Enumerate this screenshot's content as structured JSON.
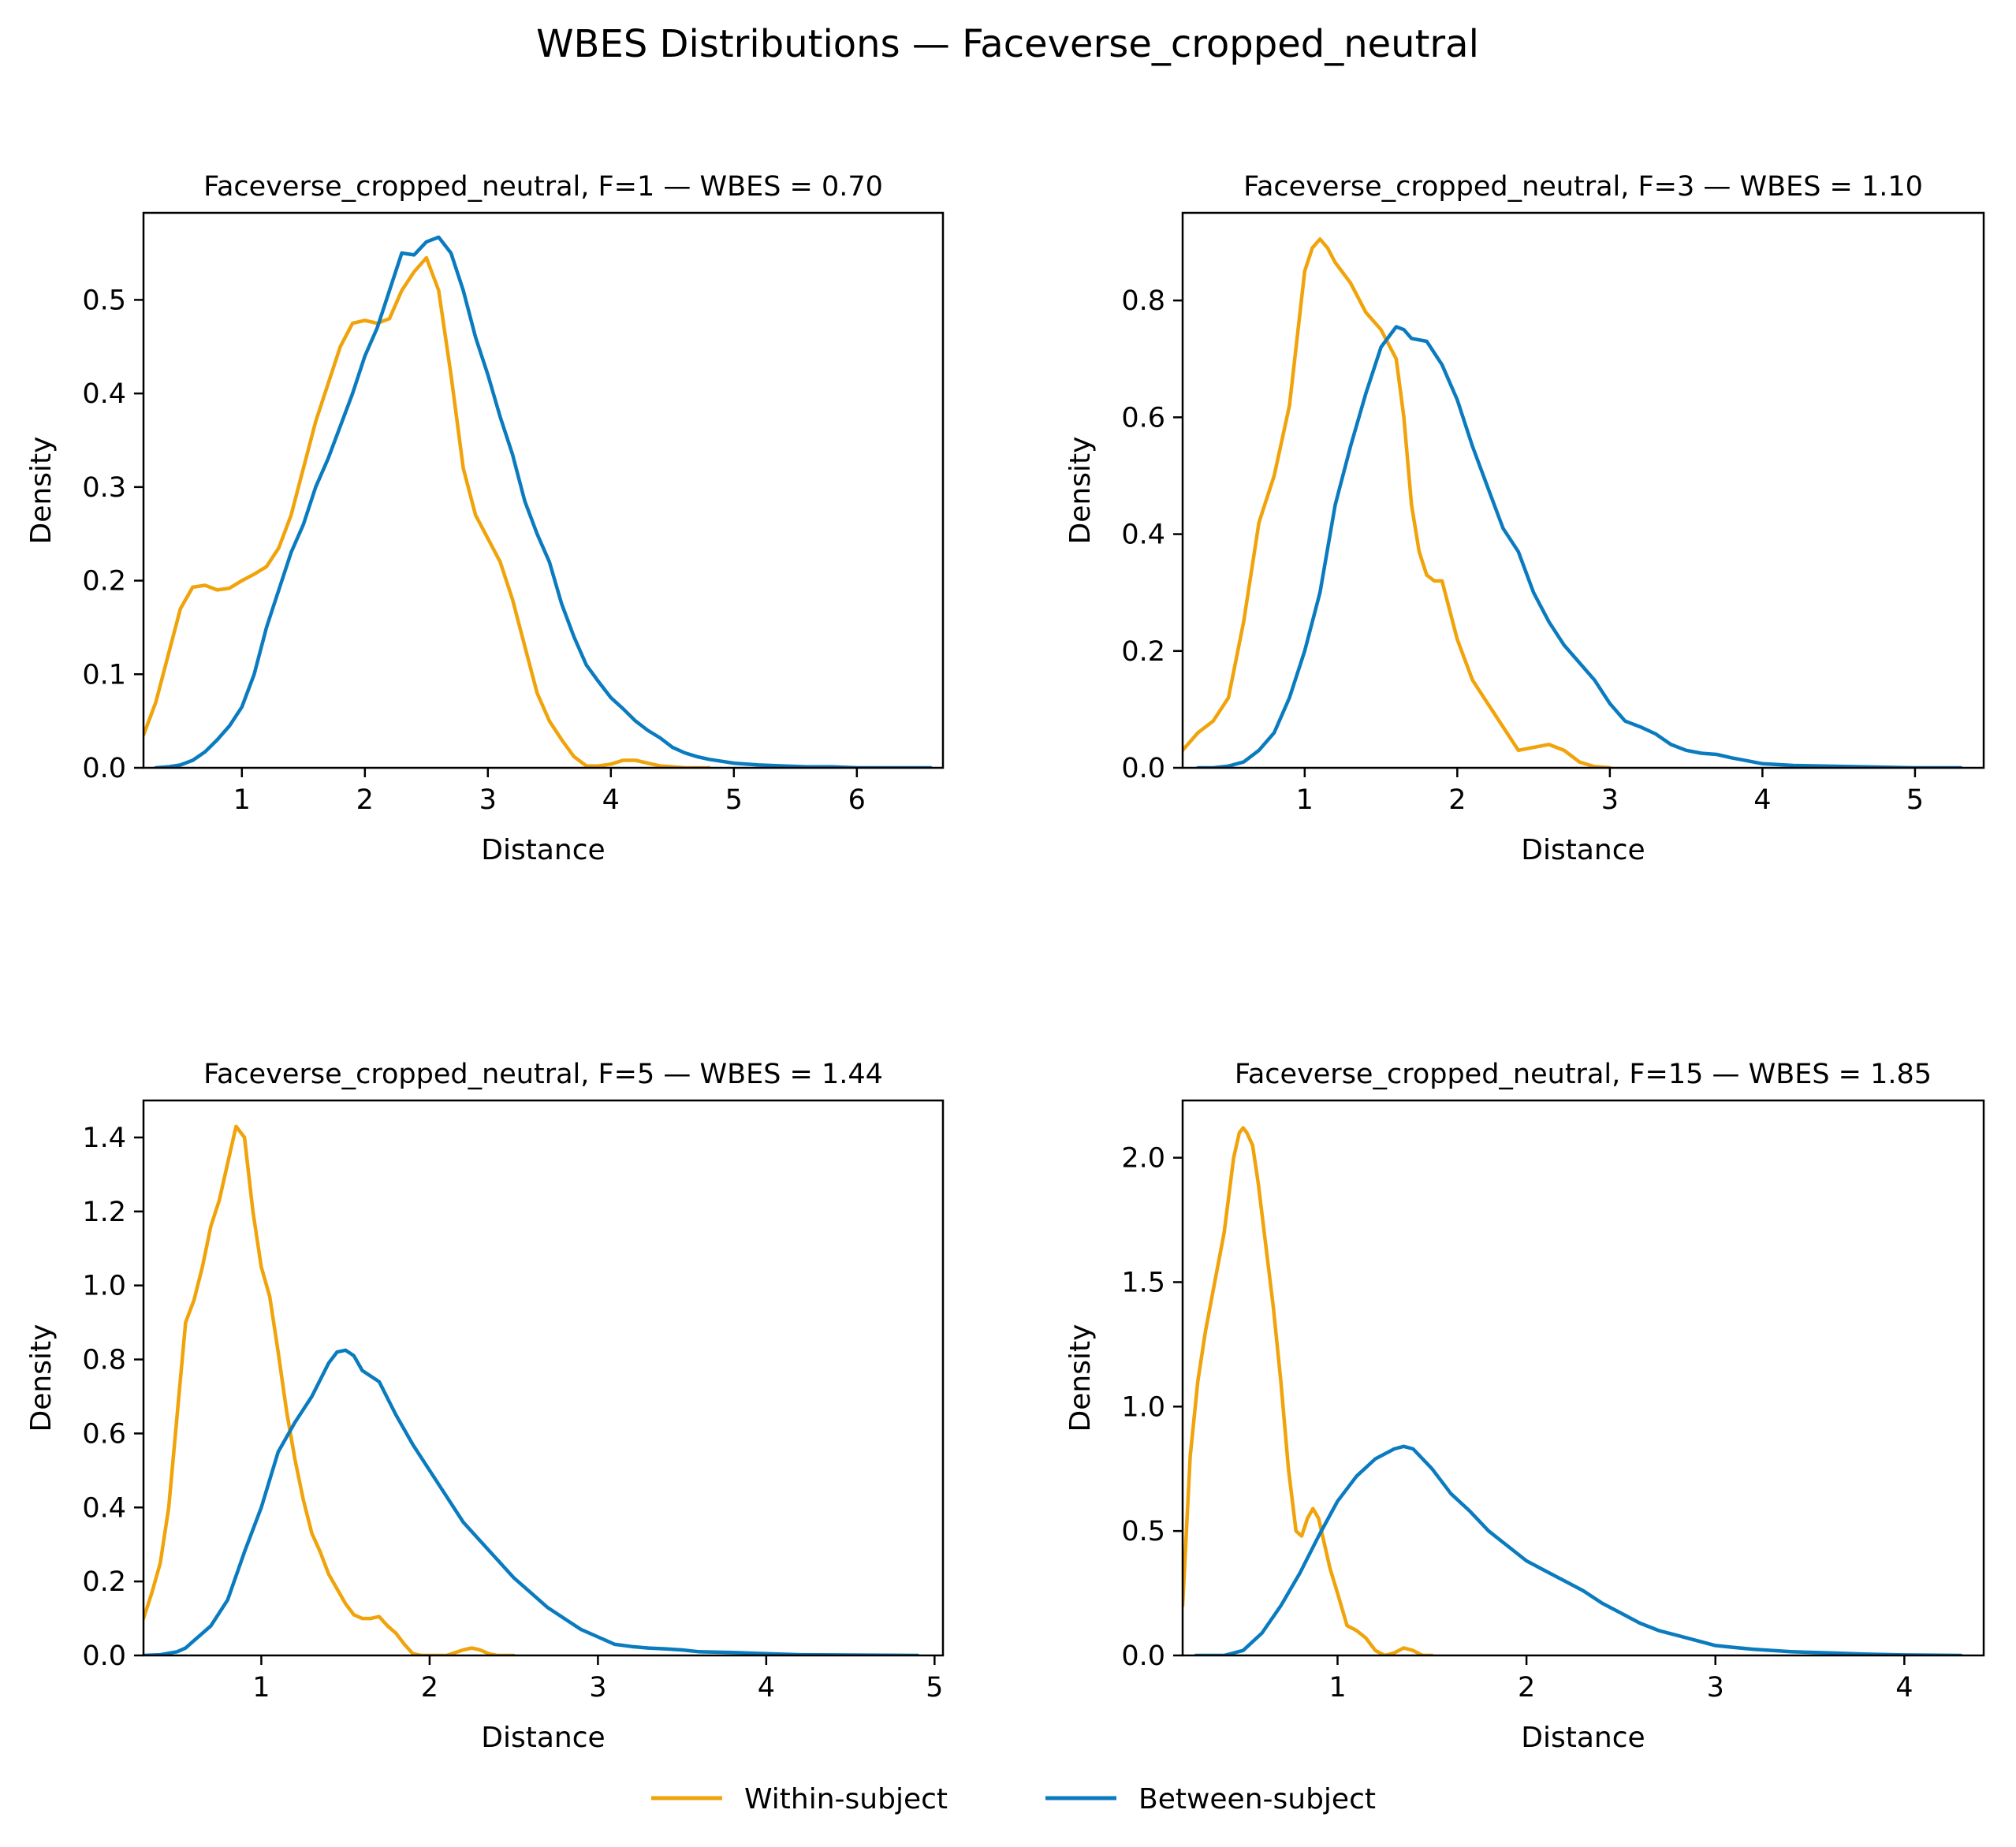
{
  "figure": {
    "suptitle": "WBES Distributions — Faceverse_cropped_neutral",
    "legend": {
      "placement": "bottom-center",
      "entries": [
        {
          "label": "Within-subject",
          "color": "#F0A30A"
        },
        {
          "label": "Between-subject",
          "color": "#0A7BBF"
        }
      ]
    }
  },
  "chart_data": [
    {
      "type": "line",
      "title": "Faceverse_cropped_neutral, F=1 — WBES = 0.70",
      "xlabel": "Distance",
      "ylabel": "Density",
      "xlim": [
        0.2,
        6.7
      ],
      "ylim": [
        0,
        0.593
      ],
      "xticks": [
        1,
        2,
        3,
        4,
        5,
        6
      ],
      "yticks": [
        0.0,
        0.1,
        0.2,
        0.3,
        0.4,
        0.5
      ],
      "ytick_labels": [
        "0.0",
        "0.1",
        "0.2",
        "0.3",
        "0.4",
        "0.5"
      ],
      "grid": false,
      "series": [
        {
          "name": "Within-subject",
          "color": "#F0A30A",
          "x": [
            0.2,
            0.3,
            0.4,
            0.5,
            0.6,
            0.7,
            0.8,
            0.9,
            1.0,
            1.1,
            1.2,
            1.3,
            1.4,
            1.5,
            1.6,
            1.7,
            1.8,
            1.9,
            2.0,
            2.1,
            2.2,
            2.3,
            2.4,
            2.5,
            2.6,
            2.7,
            2.8,
            2.9,
            3.0,
            3.1,
            3.2,
            3.3,
            3.4,
            3.5,
            3.6,
            3.7,
            3.8,
            3.9,
            4.0,
            4.1,
            4.2,
            4.3,
            4.4,
            4.5,
            4.6,
            4.7,
            4.8
          ],
          "y": [
            0.035,
            0.07,
            0.12,
            0.17,
            0.193,
            0.195,
            0.19,
            0.192,
            0.2,
            0.207,
            0.215,
            0.235,
            0.27,
            0.32,
            0.37,
            0.41,
            0.45,
            0.475,
            0.478,
            0.475,
            0.48,
            0.51,
            0.53,
            0.545,
            0.51,
            0.42,
            0.32,
            0.27,
            0.245,
            0.22,
            0.18,
            0.13,
            0.08,
            0.05,
            0.03,
            0.012,
            0.002,
            0.002,
            0.004,
            0.008,
            0.008,
            0.005,
            0.002,
            0.001,
            0.0,
            0.0,
            0.0
          ]
        },
        {
          "name": "Between-subject",
          "color": "#0A7BBF",
          "x": [
            0.3,
            0.4,
            0.5,
            0.6,
            0.7,
            0.8,
            0.9,
            1.0,
            1.1,
            1.2,
            1.3,
            1.4,
            1.5,
            1.6,
            1.7,
            1.8,
            1.9,
            2.0,
            2.1,
            2.2,
            2.3,
            2.4,
            2.5,
            2.6,
            2.7,
            2.8,
            2.9,
            3.0,
            3.1,
            3.2,
            3.3,
            3.4,
            3.5,
            3.6,
            3.7,
            3.8,
            3.9,
            4.0,
            4.1,
            4.2,
            4.3,
            4.4,
            4.5,
            4.6,
            4.7,
            4.8,
            4.9,
            5.0,
            5.2,
            5.4,
            5.6,
            5.8,
            6.0,
            6.2,
            6.4,
            6.6
          ],
          "y": [
            0.0,
            0.001,
            0.003,
            0.008,
            0.017,
            0.03,
            0.045,
            0.065,
            0.1,
            0.15,
            0.19,
            0.23,
            0.26,
            0.3,
            0.33,
            0.365,
            0.4,
            0.44,
            0.47,
            0.51,
            0.55,
            0.548,
            0.562,
            0.567,
            0.55,
            0.51,
            0.46,
            0.42,
            0.375,
            0.335,
            0.285,
            0.25,
            0.22,
            0.175,
            0.14,
            0.11,
            0.092,
            0.075,
            0.063,
            0.05,
            0.04,
            0.032,
            0.022,
            0.016,
            0.012,
            0.009,
            0.007,
            0.005,
            0.003,
            0.002,
            0.001,
            0.001,
            0.0,
            0.0,
            0.0,
            0.0
          ]
        }
      ]
    },
    {
      "type": "line",
      "title": "Faceverse_cropped_neutral, F=3 — WBES = 1.10",
      "xlabel": "Distance",
      "ylabel": "Density",
      "xlim": [
        0.2,
        5.45
      ],
      "ylim": [
        0,
        0.95
      ],
      "xticks": [
        1,
        2,
        3,
        4,
        5
      ],
      "yticks": [
        0.0,
        0.2,
        0.4,
        0.6,
        0.8
      ],
      "ytick_labels": [
        "0.0",
        "0.2",
        "0.4",
        "0.6",
        "0.8"
      ],
      "grid": false,
      "series": [
        {
          "name": "Within-subject",
          "color": "#F0A30A",
          "x": [
            0.2,
            0.3,
            0.4,
            0.5,
            0.6,
            0.7,
            0.8,
            0.9,
            1.0,
            1.05,
            1.1,
            1.15,
            1.2,
            1.3,
            1.4,
            1.5,
            1.6,
            1.65,
            1.7,
            1.75,
            1.8,
            1.85,
            1.9,
            2.0,
            2.1,
            2.2,
            2.3,
            2.4,
            2.5,
            2.6,
            2.7,
            2.8,
            2.9,
            3.0
          ],
          "y": [
            0.03,
            0.06,
            0.08,
            0.12,
            0.25,
            0.42,
            0.5,
            0.62,
            0.85,
            0.89,
            0.905,
            0.89,
            0.865,
            0.83,
            0.78,
            0.75,
            0.7,
            0.6,
            0.45,
            0.37,
            0.33,
            0.32,
            0.32,
            0.22,
            0.15,
            0.11,
            0.07,
            0.03,
            0.035,
            0.04,
            0.03,
            0.01,
            0.002,
            0.0
          ]
        },
        {
          "name": "Between-subject",
          "color": "#0A7BBF",
          "x": [
            0.3,
            0.4,
            0.5,
            0.6,
            0.7,
            0.8,
            0.9,
            1.0,
            1.1,
            1.2,
            1.3,
            1.4,
            1.5,
            1.6,
            1.65,
            1.7,
            1.8,
            1.9,
            2.0,
            2.1,
            2.2,
            2.3,
            2.4,
            2.5,
            2.6,
            2.7,
            2.8,
            2.9,
            3.0,
            3.1,
            3.2,
            3.3,
            3.4,
            3.5,
            3.6,
            3.7,
            3.8,
            3.9,
            4.0,
            4.2,
            4.4,
            4.6,
            4.8,
            5.0,
            5.3
          ],
          "y": [
            0.0,
            0.0,
            0.003,
            0.01,
            0.03,
            0.06,
            0.12,
            0.2,
            0.3,
            0.45,
            0.55,
            0.64,
            0.72,
            0.755,
            0.75,
            0.735,
            0.73,
            0.69,
            0.63,
            0.55,
            0.48,
            0.41,
            0.37,
            0.3,
            0.25,
            0.21,
            0.18,
            0.15,
            0.11,
            0.08,
            0.07,
            0.058,
            0.04,
            0.03,
            0.025,
            0.023,
            0.017,
            0.012,
            0.007,
            0.004,
            0.003,
            0.002,
            0.001,
            0.0,
            0.0
          ]
        }
      ]
    },
    {
      "type": "line",
      "title": "Faceverse_cropped_neutral, F=5 — WBES = 1.44",
      "xlabel": "Distance",
      "ylabel": "Density",
      "xlim": [
        0.3,
        5.05
      ],
      "ylim": [
        0,
        1.5
      ],
      "xticks": [
        1,
        2,
        3,
        4,
        5
      ],
      "yticks": [
        0.0,
        0.2,
        0.4,
        0.6,
        0.8,
        1.0,
        1.2,
        1.4
      ],
      "ytick_labels": [
        "0.0",
        "0.2",
        "0.4",
        "0.6",
        "0.8",
        "1.0",
        "1.2",
        "1.4"
      ],
      "grid": false,
      "series": [
        {
          "name": "Within-subject",
          "color": "#F0A30A",
          "x": [
            0.3,
            0.35,
            0.4,
            0.45,
            0.5,
            0.55,
            0.6,
            0.65,
            0.7,
            0.75,
            0.8,
            0.85,
            0.9,
            0.95,
            1.0,
            1.05,
            1.1,
            1.15,
            1.2,
            1.25,
            1.3,
            1.35,
            1.4,
            1.45,
            1.5,
            1.55,
            1.6,
            1.65,
            1.7,
            1.75,
            1.8,
            1.85,
            1.9,
            1.95,
            2.0,
            2.1,
            2.2,
            2.25,
            2.3,
            2.35,
            2.4,
            2.5
          ],
          "y": [
            0.1,
            0.17,
            0.25,
            0.4,
            0.65,
            0.9,
            0.96,
            1.05,
            1.16,
            1.23,
            1.33,
            1.43,
            1.4,
            1.2,
            1.05,
            0.97,
            0.82,
            0.66,
            0.53,
            0.42,
            0.33,
            0.28,
            0.22,
            0.18,
            0.14,
            0.11,
            0.1,
            0.1,
            0.105,
            0.08,
            0.06,
            0.03,
            0.005,
            0.0,
            0.0,
            0.0,
            0.015,
            0.02,
            0.015,
            0.005,
            0.0,
            0.0
          ]
        },
        {
          "name": "Between-subject",
          "color": "#0A7BBF",
          "x": [
            0.3,
            0.4,
            0.5,
            0.55,
            0.6,
            0.7,
            0.8,
            0.9,
            1.0,
            1.1,
            1.2,
            1.3,
            1.4,
            1.45,
            1.5,
            1.55,
            1.6,
            1.7,
            1.8,
            1.9,
            2.0,
            2.1,
            2.2,
            2.3,
            2.4,
            2.5,
            2.6,
            2.7,
            2.8,
            2.9,
            3.0,
            3.1,
            3.2,
            3.3,
            3.4,
            3.5,
            3.6,
            3.8,
            4.0,
            4.2,
            4.5,
            4.9
          ],
          "y": [
            0.0,
            0.002,
            0.01,
            0.02,
            0.04,
            0.08,
            0.15,
            0.28,
            0.4,
            0.55,
            0.63,
            0.7,
            0.79,
            0.82,
            0.825,
            0.81,
            0.77,
            0.74,
            0.65,
            0.57,
            0.5,
            0.43,
            0.36,
            0.31,
            0.26,
            0.21,
            0.17,
            0.13,
            0.1,
            0.07,
            0.05,
            0.03,
            0.024,
            0.02,
            0.018,
            0.015,
            0.01,
            0.008,
            0.005,
            0.002,
            0.001,
            0.0
          ]
        }
      ]
    },
    {
      "type": "line",
      "title": "Faceverse_cropped_neutral, F=15 — WBES = 1.85",
      "xlabel": "Distance",
      "ylabel": "Density",
      "xlim": [
        0.18,
        4.42
      ],
      "ylim": [
        0,
        2.23
      ],
      "xticks": [
        1,
        2,
        3,
        4
      ],
      "yticks": [
        0.0,
        0.5,
        1.0,
        1.5,
        2.0
      ],
      "ytick_labels": [
        "0.0",
        "0.5",
        "1.0",
        "1.5",
        "2.0"
      ],
      "grid": false,
      "series": [
        {
          "name": "Within-subject",
          "color": "#F0A30A",
          "x": [
            0.18,
            0.22,
            0.26,
            0.3,
            0.35,
            0.4,
            0.45,
            0.48,
            0.5,
            0.52,
            0.55,
            0.58,
            0.62,
            0.66,
            0.7,
            0.74,
            0.78,
            0.81,
            0.84,
            0.87,
            0.9,
            0.93,
            0.96,
            1.0,
            1.05,
            1.1,
            1.15,
            1.2,
            1.25,
            1.3,
            1.35,
            1.4,
            1.45,
            1.5
          ],
          "y": [
            0.2,
            0.8,
            1.1,
            1.3,
            1.5,
            1.7,
            2.0,
            2.1,
            2.12,
            2.1,
            2.05,
            1.9,
            1.65,
            1.4,
            1.1,
            0.75,
            0.5,
            0.48,
            0.55,
            0.59,
            0.55,
            0.45,
            0.35,
            0.25,
            0.12,
            0.1,
            0.07,
            0.02,
            0.0,
            0.01,
            0.03,
            0.02,
            0.0,
            0.0
          ]
        },
        {
          "name": "Between-subject",
          "color": "#0A7BBF",
          "x": [
            0.25,
            0.3,
            0.4,
            0.5,
            0.6,
            0.7,
            0.8,
            0.9,
            1.0,
            1.1,
            1.2,
            1.3,
            1.35,
            1.4,
            1.5,
            1.6,
            1.7,
            1.8,
            1.9,
            2.0,
            2.1,
            2.2,
            2.3,
            2.4,
            2.5,
            2.6,
            2.7,
            2.8,
            2.9,
            3.0,
            3.1,
            3.2,
            3.4,
            3.6,
            3.8,
            4.0,
            4.3
          ],
          "y": [
            0.0,
            0.0,
            0.0,
            0.02,
            0.09,
            0.2,
            0.33,
            0.48,
            0.62,
            0.72,
            0.79,
            0.83,
            0.84,
            0.83,
            0.75,
            0.65,
            0.58,
            0.5,
            0.44,
            0.38,
            0.34,
            0.3,
            0.26,
            0.21,
            0.17,
            0.13,
            0.1,
            0.08,
            0.06,
            0.04,
            0.032,
            0.025,
            0.015,
            0.01,
            0.005,
            0.002,
            0.0
          ]
        }
      ]
    }
  ]
}
